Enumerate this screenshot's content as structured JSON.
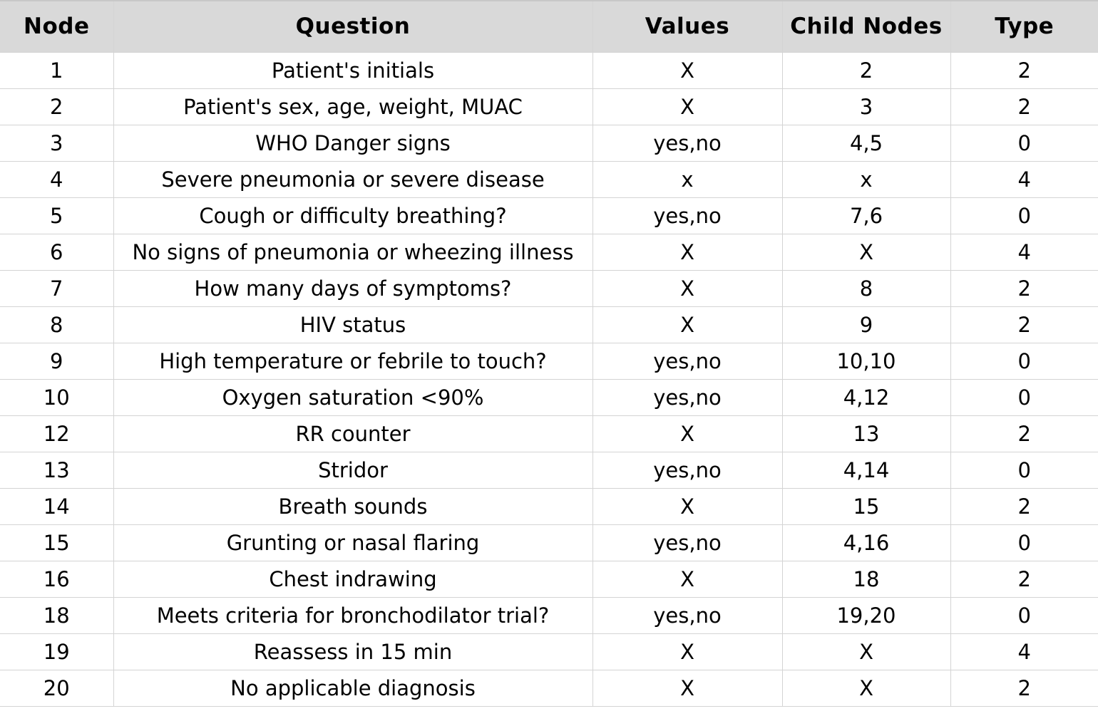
{
  "table": {
    "headers": [
      "Node",
      "Question",
      "Values",
      "Child Nodes",
      "Type"
    ],
    "rows": [
      [
        "1",
        "Patient's initials",
        "X",
        "2",
        "2"
      ],
      [
        "2",
        "Patient's sex, age, weight, MUAC",
        "X",
        "3",
        "2"
      ],
      [
        "3",
        "WHO Danger signs",
        "yes,no",
        "4,5",
        "0"
      ],
      [
        "4",
        "Severe pneumonia or severe disease",
        "x",
        "x",
        "4"
      ],
      [
        "5",
        "Cough or difficulty breathing?",
        "yes,no",
        "7,6",
        "0"
      ],
      [
        "6",
        "No signs of pneumonia or wheezing illness",
        "X",
        "X",
        "4"
      ],
      [
        "7",
        "How many days of symptoms?",
        "X",
        "8",
        "2"
      ],
      [
        "8",
        "HIV status",
        "X",
        "9",
        "2"
      ],
      [
        "9",
        "High temperature or febrile to touch?",
        "yes,no",
        "10,10",
        "0"
      ],
      [
        "10",
        "Oxygen saturation <90%",
        "yes,no",
        "4,12",
        "0"
      ],
      [
        "12",
        "RR counter",
        "X",
        "13",
        "2"
      ],
      [
        "13",
        "Stridor",
        "yes,no",
        "4,14",
        "0"
      ],
      [
        "14",
        "Breath sounds",
        "X",
        "15",
        "2"
      ],
      [
        "15",
        "Grunting or nasal flaring",
        "yes,no",
        "4,16",
        "0"
      ],
      [
        "16",
        "Chest indrawing",
        "X",
        "18",
        "2"
      ],
      [
        "18",
        "Meets criteria for bronchodilator trial?",
        "yes,no",
        "19,20",
        "0"
      ],
      [
        "19",
        "Reassess in 15 min",
        "X",
        "X",
        "4"
      ],
      [
        "20",
        "No applicable diagnosis",
        "X",
        "X",
        "2"
      ]
    ]
  }
}
